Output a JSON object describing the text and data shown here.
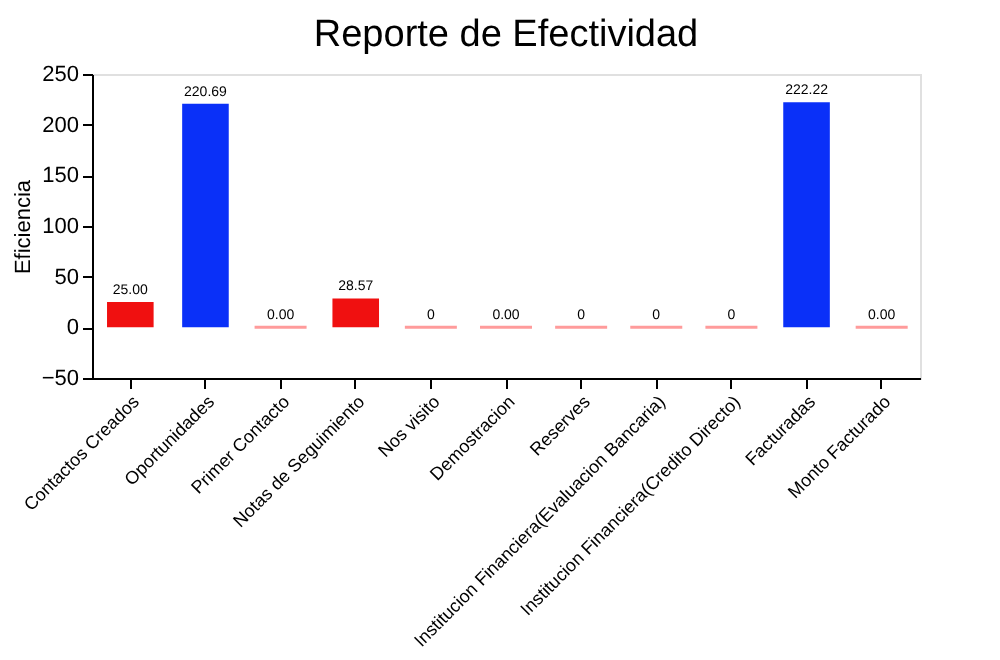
{
  "chart_data": {
    "type": "bar",
    "title": "Reporte de Efectividad",
    "ylabel": "Eficiencia",
    "categories": [
      "Contactos Creados",
      "Oportunidades",
      "Primer Contacto",
      "Notas de Seguimiento",
      "Nos visito",
      "Demostracion",
      "Reserves",
      "Institucion Financiera(Evaluacion Bancaria)",
      "Institucion Financiera(Credito Directo)",
      "Facturadas",
      "Monto Facturado"
    ],
    "values": [
      25,
      220.69,
      0,
      28.57,
      0,
      0,
      0,
      0,
      0,
      222.22,
      0
    ],
    "value_labels": [
      "25.00",
      "220.69",
      "0.00",
      "28.57",
      "0",
      "0.00",
      "0",
      "0",
      "0",
      "222.22",
      "0.00"
    ],
    "colors": [
      "#f01010",
      "#0a30f8",
      "#ff7070",
      "#f01010",
      "#ff7070",
      "#ff7070",
      "#ff7070",
      "#ff7070",
      "#ff7070",
      "#0a30f8",
      "#ff7070"
    ],
    "ylim": [
      -50,
      250
    ],
    "yticks": [
      -50,
      0,
      50,
      100,
      150,
      200,
      250
    ],
    "grid": false
  }
}
